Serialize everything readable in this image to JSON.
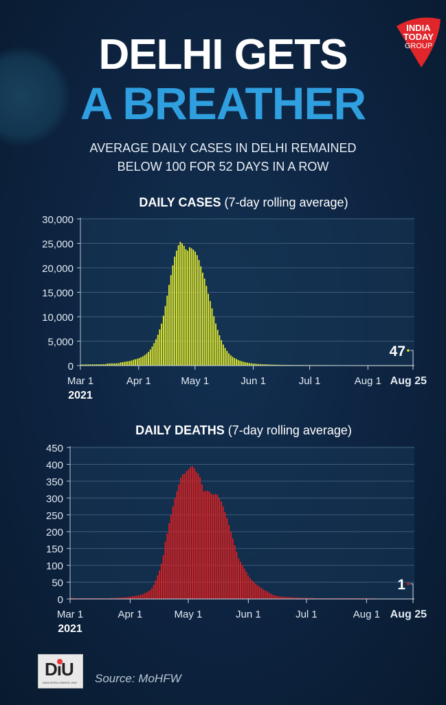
{
  "header": {
    "title_line1": "DELHI GETS",
    "title_line2": "A BREATHER",
    "subtitle_line1": "AVERAGE DAILY CASES IN DELHI REMAINED",
    "subtitle_line2": "BELOW 100 FOR 52 DAYS IN A ROW"
  },
  "logos": {
    "india_today": "INDIA TODAY GROUP",
    "diu": "DIU",
    "diu_sub": "DATA INTELLIGENCE UNIT"
  },
  "footer": {
    "source": "Source: MoHFW"
  },
  "colors": {
    "background": "#0d2340",
    "title_accent": "#2f9fe0",
    "cases_bar": "#e8ee2a",
    "deaths_bar": "#e01e1e",
    "logo_red": "#e0262b"
  },
  "chart_data": [
    {
      "type": "bar",
      "title_bold": "DAILY CASES",
      "title_rest": " (7-day rolling average)",
      "start_date": "2021-03-01",
      "end_date": "2021-08-25",
      "ylim": [
        0,
        30000
      ],
      "yticks": [
        0,
        5000,
        10000,
        15000,
        20000,
        25000,
        30000
      ],
      "ytick_labels": [
        "0",
        "5,000",
        "10,000",
        "15,000",
        "20,000",
        "25,000",
        "30,000"
      ],
      "xtick_labels": [
        "Mar 1",
        "Apr 1",
        "May 1",
        "Jun 1",
        "Jul 1",
        "Aug 1",
        "Aug 25"
      ],
      "xtick_dates": [
        "2021-03-01",
        "2021-04-01",
        "2021-05-01",
        "2021-06-01",
        "2021-07-01",
        "2021-08-01",
        "2021-08-25"
      ],
      "year_label": "2021",
      "grid": true,
      "last_value_label": "47",
      "values": [
        220,
        225,
        230,
        235,
        240,
        245,
        250,
        255,
        260,
        265,
        270,
        280,
        290,
        300,
        420,
        430,
        440,
        450,
        460,
        470,
        480,
        650,
        700,
        760,
        820,
        880,
        950,
        1030,
        1200,
        1300,
        1400,
        1550,
        1700,
        1900,
        2150,
        2450,
        2800,
        3300,
        3900,
        4600,
        5400,
        6300,
        7400,
        8600,
        10200,
        12200,
        14300,
        16500,
        18500,
        20500,
        22300,
        23500,
        24600,
        25300,
        25000,
        24500,
        23800,
        23500,
        24200,
        24000,
        23700,
        23300,
        22600,
        21600,
        20300,
        19000,
        17800,
        16300,
        14700,
        13200,
        11700,
        10100,
        8600,
        7300,
        6200,
        5200,
        4300,
        3600,
        3000,
        2500,
        2100,
        1800,
        1550,
        1350,
        1150,
        1000,
        870,
        760,
        670,
        590,
        520,
        460,
        410,
        380,
        350,
        320,
        300,
        280,
        260,
        245,
        230,
        215,
        200,
        190,
        180,
        170,
        160,
        150,
        145,
        140,
        135,
        130,
        125,
        120,
        118,
        115,
        112,
        110,
        108,
        106,
        104,
        102,
        101,
        101,
        100,
        100,
        98,
        96,
        94,
        92,
        90,
        88,
        86,
        84,
        82,
        80,
        78,
        76,
        74,
        72,
        70,
        68,
        66,
        64,
        63,
        62,
        61,
        60,
        59,
        58,
        57,
        56,
        55,
        54,
        54,
        53,
        53,
        52,
        52,
        51,
        51,
        50,
        50,
        50,
        49,
        49,
        49,
        49,
        48,
        48,
        48,
        48,
        48,
        47,
        47,
        47,
        47,
        47
      ]
    },
    {
      "type": "bar",
      "title_bold": "DAILY DEATHS",
      "title_rest": " (7-day rolling average)",
      "start_date": "2021-03-01",
      "end_date": "2021-08-25",
      "ylim": [
        0,
        450
      ],
      "yticks": [
        0,
        50,
        100,
        150,
        200,
        250,
        300,
        350,
        400,
        450
      ],
      "ytick_labels": [
        "0",
        "50",
        "100",
        "150",
        "200",
        "250",
        "300",
        "350",
        "400",
        "450"
      ],
      "xtick_labels": [
        "Mar 1",
        "Apr 1",
        "May 1",
        "Jun 1",
        "Jul 1",
        "Aug 1",
        "Aug 25"
      ],
      "xtick_dates": [
        "2021-03-01",
        "2021-04-01",
        "2021-05-01",
        "2021-06-01",
        "2021-07-01",
        "2021-08-01",
        "2021-08-25"
      ],
      "year_label": "2021",
      "grid": true,
      "last_value_label": "1",
      "values": [
        3,
        3,
        2,
        2,
        2,
        2,
        2,
        2,
        2,
        2,
        2,
        2,
        2,
        2,
        2,
        2,
        2,
        2,
        2,
        2,
        2,
        3,
        3,
        3,
        3,
        4,
        4,
        4,
        5,
        5,
        6,
        7,
        8,
        9,
        10,
        11,
        12,
        14,
        16,
        19,
        22,
        26,
        32,
        42,
        55,
        70,
        85,
        105,
        130,
        170,
        195,
        225,
        250,
        275,
        300,
        320,
        340,
        360,
        370,
        372,
        380,
        385,
        392,
        395,
        388,
        378,
        372,
        362,
        340,
        320,
        320,
        322,
        318,
        312,
        310,
        312,
        310,
        300,
        290,
        275,
        258,
        240,
        220,
        200,
        180,
        160,
        140,
        120,
        110,
        100,
        90,
        80,
        70,
        62,
        55,
        50,
        45,
        40,
        36,
        32,
        28,
        25,
        22,
        18,
        15,
        12,
        10,
        9,
        8,
        7,
        7,
        6,
        6,
        5,
        5,
        5,
        4,
        4,
        4,
        4,
        3,
        3,
        3,
        3,
        3,
        3,
        3,
        2,
        2,
        2,
        2,
        2,
        2,
        2,
        2,
        2,
        2,
        2,
        2,
        2,
        2,
        2,
        2,
        2,
        2,
        2,
        2,
        2,
        2,
        2,
        2,
        2,
        2,
        2,
        2,
        2,
        2,
        2,
        1,
        1,
        1,
        1,
        1,
        1,
        1,
        1,
        1,
        1,
        1,
        1,
        1,
        1,
        1,
        1,
        1,
        1,
        1,
        1
      ]
    }
  ]
}
